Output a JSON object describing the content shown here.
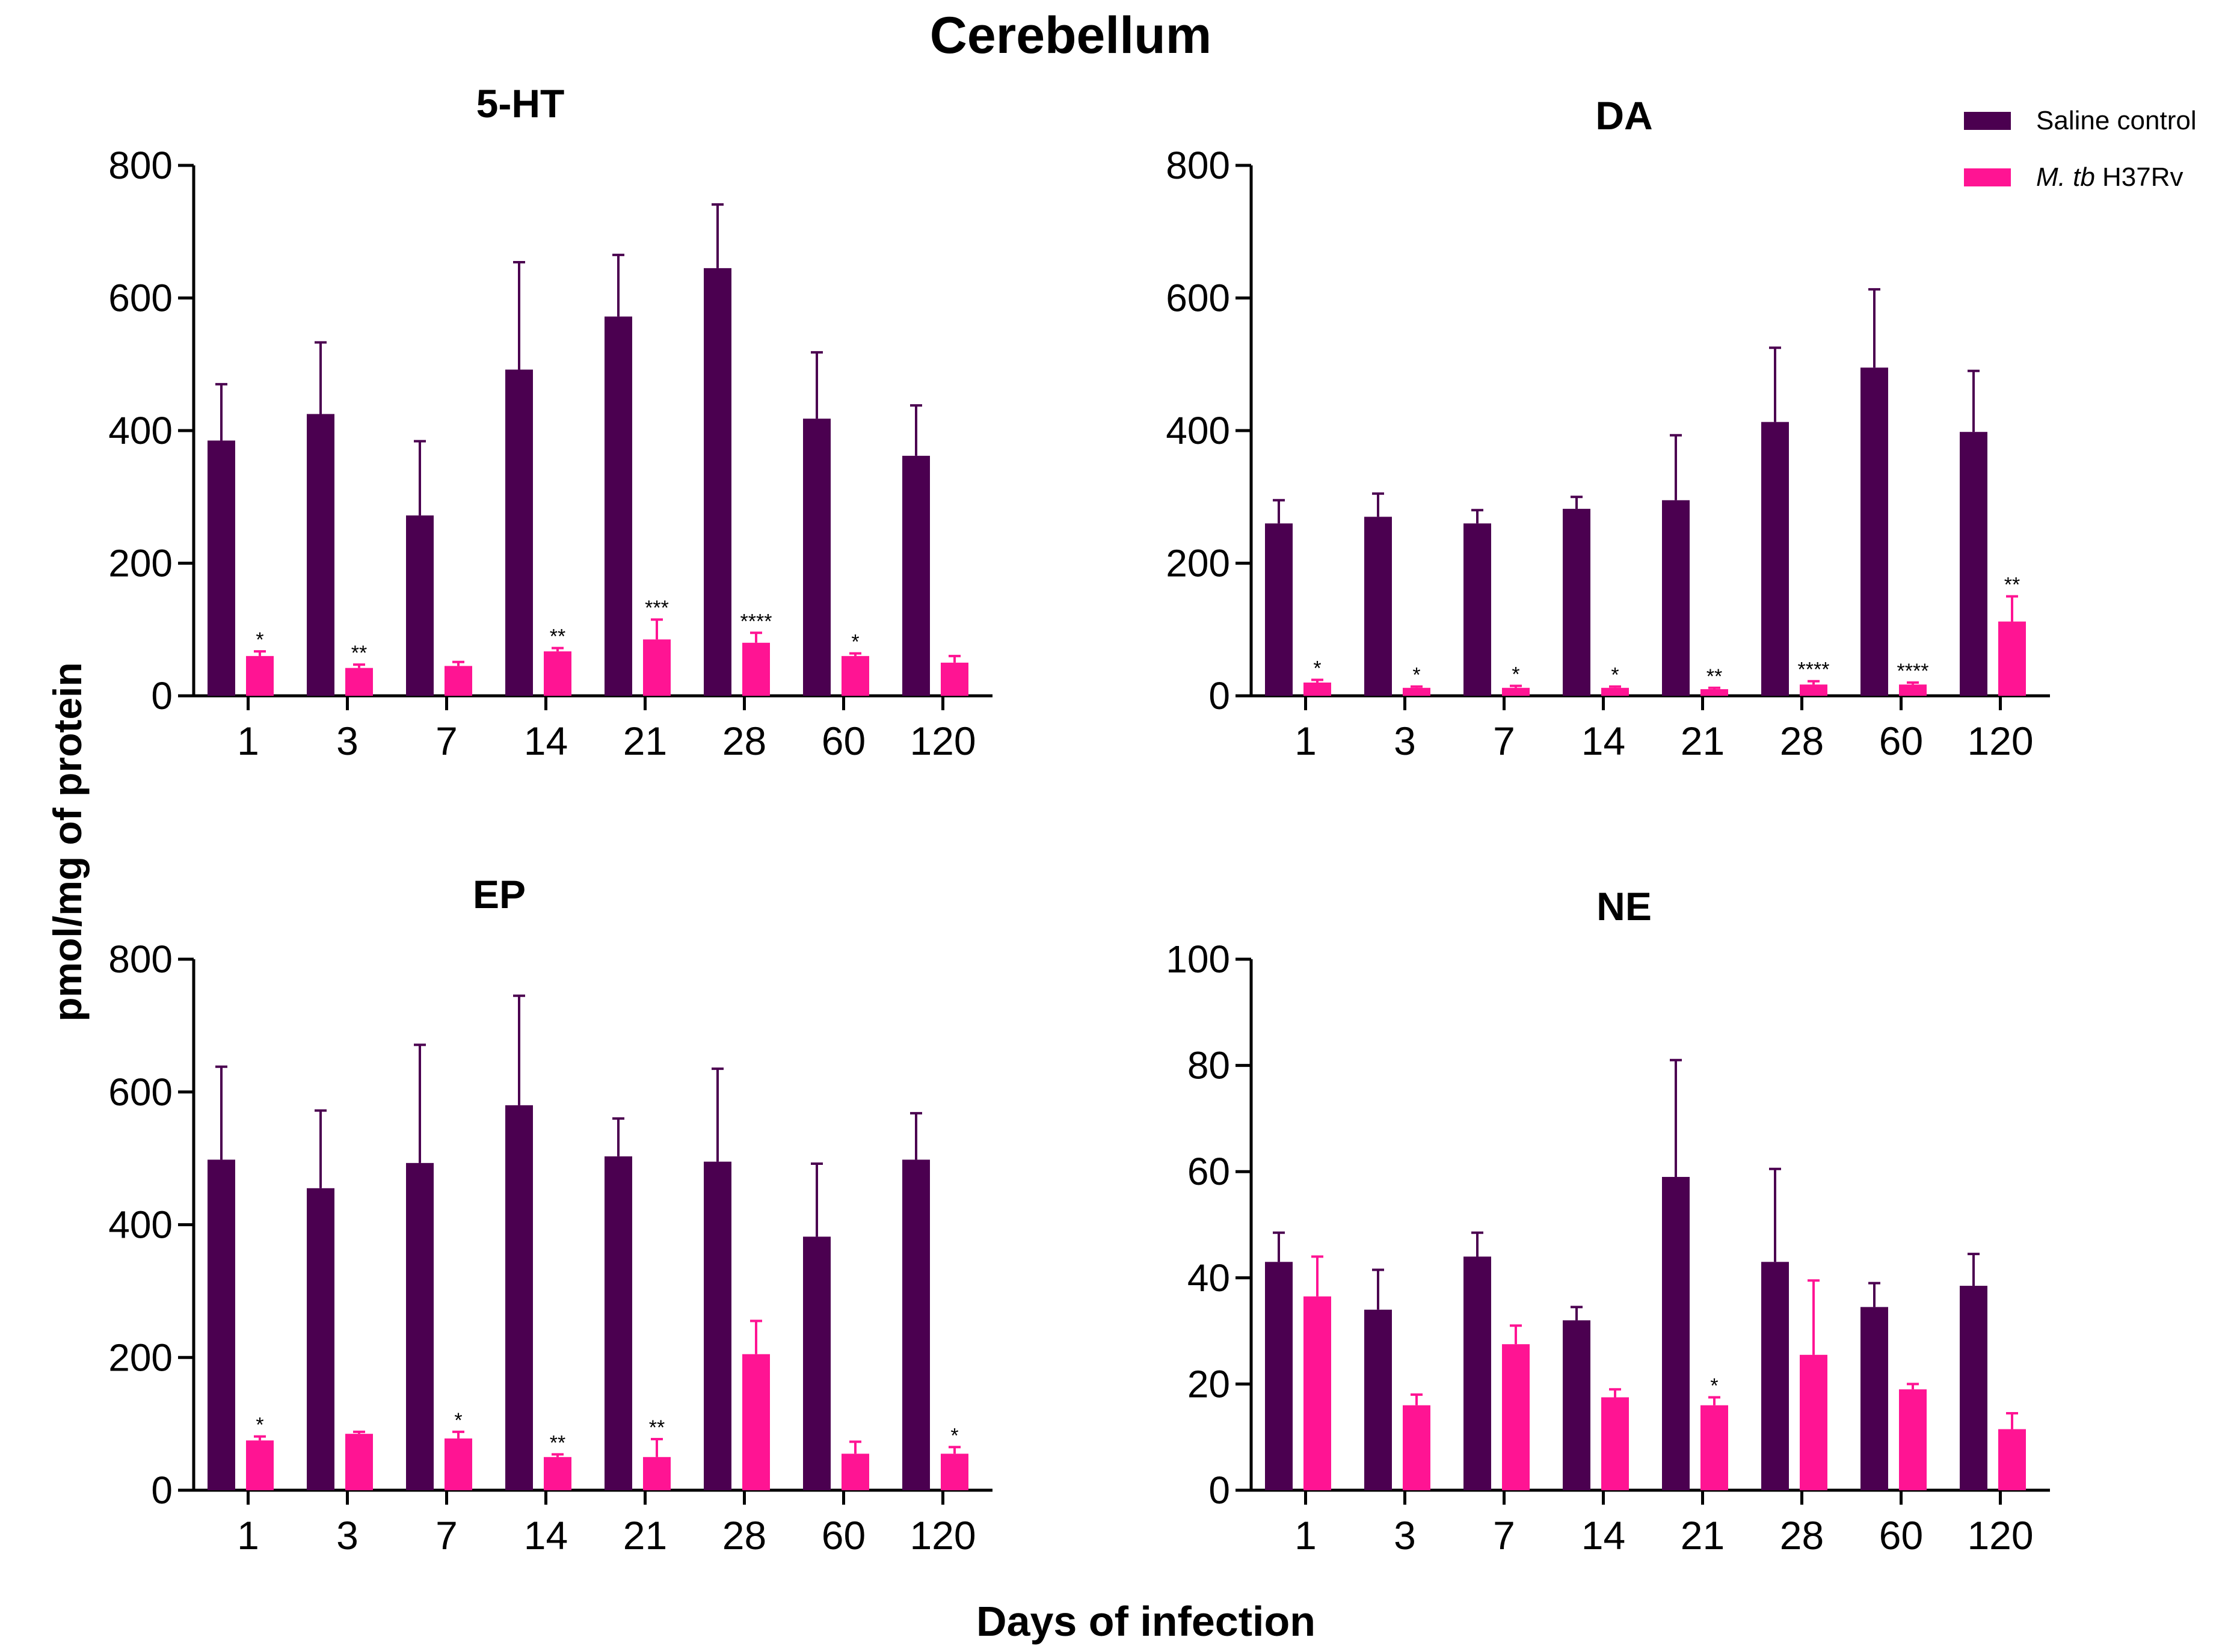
{
  "figure": {
    "title": "Cerebellum",
    "xlabel": "Days of infection",
    "ylabel": "pmol/mg of protein"
  },
  "legend": {
    "position": "top-right",
    "items": [
      {
        "label_plain": "Saline control",
        "color": "#4b0050"
      },
      {
        "label_italic": "M. tb",
        "label_plain": " H37Rv",
        "color": "#ff1493"
      }
    ]
  },
  "colors": {
    "saline": "#4b0050",
    "mtb": "#ff1493"
  },
  "chart_data": [
    {
      "type": "bar",
      "title": "5-HT",
      "categories": [
        "1",
        "3",
        "7",
        "14",
        "21",
        "28",
        "60",
        "120"
      ],
      "ylim": [
        0,
        800
      ],
      "yticks": [
        "0",
        "200",
        "400",
        "600",
        "800"
      ],
      "series": [
        {
          "name": "Saline control",
          "values": [
            385,
            425,
            272,
            492,
            572,
            645,
            418,
            362
          ],
          "errors": [
            85,
            108,
            112,
            162,
            93,
            96,
            100,
            76
          ]
        },
        {
          "name": "M. tb H37Rv",
          "values": [
            60,
            42,
            45,
            67,
            85,
            80,
            60,
            50
          ],
          "errors": [
            7,
            5,
            6,
            5,
            30,
            15,
            4,
            10
          ]
        }
      ],
      "significance": [
        "*",
        "**",
        "",
        "**",
        "***",
        "****",
        "*",
        ""
      ]
    },
    {
      "type": "bar",
      "title": "DA",
      "categories": [
        "1",
        "3",
        "7",
        "14",
        "21",
        "28",
        "60",
        "120"
      ],
      "ylim": [
        0,
        800
      ],
      "yticks": [
        "0",
        "200",
        "400",
        "600",
        "800"
      ],
      "series": [
        {
          "name": "Saline control",
          "values": [
            260,
            270,
            260,
            282,
            295,
            413,
            495,
            398
          ],
          "errors": [
            35,
            35,
            20,
            18,
            98,
            112,
            118,
            92
          ]
        },
        {
          "name": "M. tb H37Rv",
          "values": [
            20,
            12,
            12,
            12,
            10,
            17,
            17,
            112
          ],
          "errors": [
            4,
            2,
            3,
            2,
            2,
            5,
            3,
            38
          ]
        }
      ],
      "significance": [
        "*",
        "*",
        "*",
        "*",
        "**",
        "****",
        "****",
        "**"
      ]
    },
    {
      "type": "bar",
      "title": "EP",
      "categories": [
        "1",
        "3",
        "7",
        "14",
        "21",
        "28",
        "60",
        "120"
      ],
      "ylim": [
        0,
        800
      ],
      "yticks": [
        "0",
        "200",
        "400",
        "600",
        "800"
      ],
      "series": [
        {
          "name": "Saline control",
          "values": [
            498,
            455,
            493,
            580,
            503,
            495,
            382,
            498
          ],
          "errors": [
            140,
            117,
            178,
            165,
            57,
            140,
            110,
            70
          ]
        },
        {
          "name": "M. tb H37Rv",
          "values": [
            75,
            85,
            78,
            50,
            50,
            205,
            55,
            55
          ],
          "errors": [
            6,
            3,
            10,
            4,
            27,
            50,
            18,
            10
          ]
        }
      ],
      "significance": [
        "*",
        "",
        "*",
        "**",
        "**",
        "",
        "",
        "*"
      ]
    },
    {
      "type": "bar",
      "title": "NE",
      "categories": [
        "1",
        "3",
        "7",
        "14",
        "21",
        "28",
        "60",
        "120"
      ],
      "ylim": [
        0,
        100
      ],
      "yticks": [
        "0",
        "20",
        "40",
        "60",
        "80",
        "100"
      ],
      "series": [
        {
          "name": "Saline control",
          "values": [
            43,
            34,
            44,
            32,
            59,
            43,
            34.5,
            38.5
          ],
          "errors": [
            5.5,
            7.5,
            4.5,
            2.5,
            22,
            17.5,
            4.5,
            6
          ]
        },
        {
          "name": "M. tb H37Rv",
          "values": [
            36.5,
            16,
            27.5,
            17.5,
            16,
            25.5,
            19,
            11.5
          ],
          "errors": [
            7.5,
            2,
            3.5,
            1.5,
            1.5,
            14,
            1,
            3
          ]
        }
      ],
      "significance": [
        "",
        "",
        "",
        "",
        "*",
        "",
        "",
        ""
      ]
    }
  ]
}
